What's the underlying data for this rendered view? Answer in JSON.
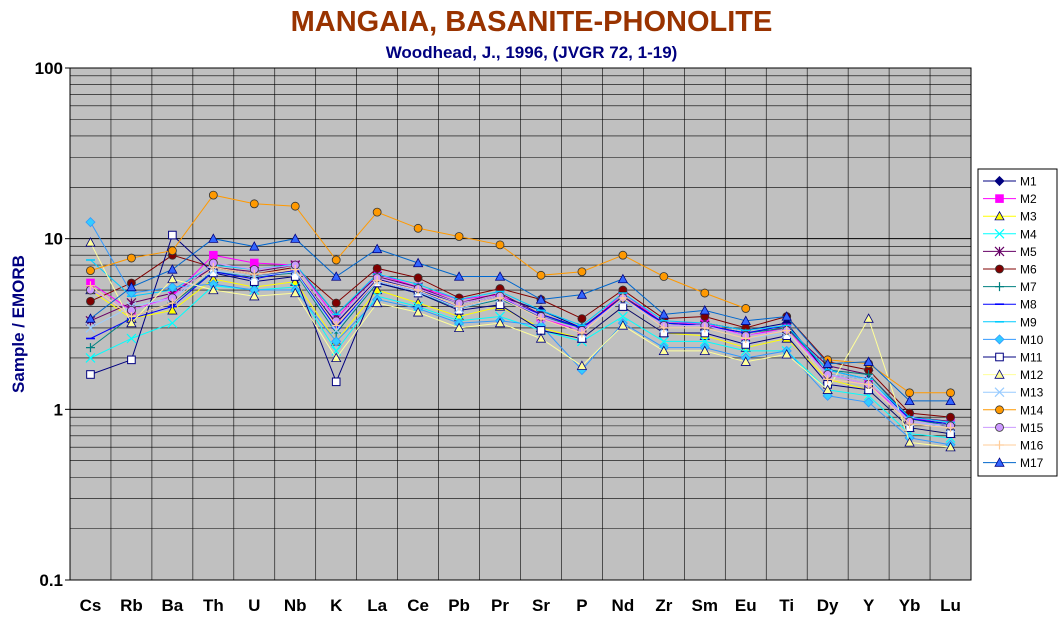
{
  "chart_data": {
    "type": "line",
    "title": "MANGAIA, BASANITE-PHONOLITE",
    "subtitle": "Woodhead, J., 1996, (JVGR 72, 1-19)",
    "xlabel": "",
    "ylabel": "Sample / EMORB",
    "y_scale": "log",
    "ylim": [
      0.1,
      100
    ],
    "y_ticks": [
      "100",
      "10",
      "1",
      "0.1"
    ],
    "grid": true,
    "legend_position": "right",
    "categories": [
      "Cs",
      "Rb",
      "Ba",
      "Th",
      "U",
      "Nb",
      "K",
      "La",
      "Ce",
      "Pb",
      "Pr",
      "Sr",
      "P",
      "Nd",
      "Zr",
      "Sm",
      "Eu",
      "Ti",
      "Dy",
      "Y",
      "Yb",
      "Lu"
    ],
    "series": [
      {
        "name": "M1",
        "color": "#000080",
        "marker": "diamond",
        "fill": "#000080",
        "values": [
          null,
          null,
          4.2,
          6.4,
          6.0,
          6.5,
          3.2,
          5.8,
          5.0,
          4.2,
          4.6,
          3.8,
          3.0,
          4.6,
          3.2,
          3.2,
          2.9,
          3.2,
          1.6,
          1.5,
          0.88,
          0.82
        ]
      },
      {
        "name": "M2",
        "color": "#ff00ff",
        "marker": "square",
        "fill": "#ff00ff",
        "values": [
          5.5,
          3.8,
          4.6,
          8.0,
          7.2,
          7.0,
          3.4,
          6.2,
          5.2,
          4.4,
          4.7,
          3.4,
          2.9,
          4.8,
          3.2,
          3.2,
          2.7,
          3.0,
          1.6,
          1.4,
          0.88,
          0.85
        ]
      },
      {
        "name": "M3",
        "color": "#ffff00",
        "marker": "triangle",
        "fill": "#ffff00",
        "values": [
          5.0,
          3.4,
          3.8,
          5.8,
          5.2,
          5.6,
          2.5,
          5.0,
          4.2,
          3.5,
          4.0,
          3.0,
          2.6,
          4.0,
          2.8,
          2.7,
          2.3,
          2.6,
          1.5,
          1.3,
          0.78,
          0.72
        ]
      },
      {
        "name": "M4",
        "color": "#00ffff",
        "marker": "x",
        "fill": "none",
        "values": [
          2.0,
          2.6,
          3.2,
          5.3,
          5.0,
          5.2,
          2.2,
          4.6,
          4.0,
          3.3,
          3.5,
          2.9,
          2.5,
          3.5,
          2.5,
          2.5,
          2.2,
          2.2,
          1.3,
          1.2,
          0.72,
          0.68
        ]
      },
      {
        "name": "M5",
        "color": "#660066",
        "marker": "star",
        "fill": "none",
        "values": [
          3.3,
          4.2,
          4.8,
          6.8,
          6.4,
          7.0,
          3.6,
          6.0,
          5.2,
          4.2,
          4.8,
          3.6,
          3.0,
          4.6,
          3.2,
          3.1,
          2.8,
          3.0,
          1.8,
          1.6,
          0.9,
          0.85
        ]
      },
      {
        "name": "M6",
        "color": "#800000",
        "marker": "circle",
        "fill": "#800000",
        "values": [
          4.3,
          5.5,
          8.0,
          6.8,
          6.2,
          6.8,
          4.2,
          6.7,
          5.9,
          4.5,
          5.1,
          4.4,
          3.4,
          5.0,
          3.4,
          3.5,
          3.0,
          3.5,
          1.9,
          1.7,
          0.95,
          0.9
        ]
      },
      {
        "name": "M7",
        "color": "#008080",
        "marker": "plus",
        "fill": "none",
        "values": [
          2.3,
          3.5,
          4.2,
          6.4,
          6.0,
          6.3,
          2.8,
          5.5,
          4.8,
          3.9,
          4.4,
          3.5,
          3.0,
          4.4,
          3.2,
          3.1,
          2.8,
          3.0,
          1.7,
          1.6,
          0.88,
          0.8
        ]
      },
      {
        "name": "M8",
        "color": "#0000ff",
        "marker": "dash",
        "fill": "none",
        "values": [
          2.6,
          3.4,
          4.0,
          6.4,
          5.8,
          6.5,
          3.0,
          5.6,
          4.9,
          4.0,
          4.5,
          3.6,
          3.0,
          4.5,
          3.2,
          3.1,
          2.8,
          3.1,
          1.7,
          1.5,
          0.88,
          0.82
        ]
      },
      {
        "name": "M9",
        "color": "#00ccff",
        "marker": "dash",
        "fill": "none",
        "values": [
          7.5,
          4.6,
          5.0,
          7.0,
          6.6,
          7.1,
          3.6,
          6.2,
          5.4,
          4.4,
          4.9,
          3.8,
          3.1,
          4.8,
          3.3,
          3.2,
          2.9,
          3.1,
          1.7,
          1.5,
          0.9,
          0.84
        ]
      },
      {
        "name": "M10",
        "color": "#3399ff",
        "marker": "diamond",
        "fill": "#33ccff",
        "values": [
          12.5,
          4.8,
          5.2,
          5.4,
          5.0,
          5.0,
          2.5,
          4.4,
          3.9,
          3.2,
          3.3,
          3.1,
          1.7,
          3.2,
          2.3,
          2.3,
          2.0,
          2.2,
          1.2,
          1.1,
          0.68,
          0.62
        ]
      },
      {
        "name": "M11",
        "color": "#000080",
        "marker": "square",
        "fill": "#ffffff",
        "values": [
          1.6,
          1.95,
          10.5,
          6.3,
          5.6,
          6.0,
          1.45,
          5.5,
          4.8,
          3.8,
          4.1,
          2.9,
          2.6,
          4.0,
          2.8,
          2.8,
          2.4,
          2.7,
          1.4,
          1.3,
          0.78,
          0.72
        ]
      },
      {
        "name": "M12",
        "color": "#ffff99",
        "marker": "triangle",
        "fill": "#ffff99",
        "values": [
          9.5,
          3.2,
          5.8,
          5.0,
          4.6,
          4.8,
          2.0,
          4.2,
          3.7,
          3.0,
          3.2,
          2.6,
          1.8,
          3.1,
          2.2,
          2.2,
          1.9,
          2.1,
          1.3,
          3.4,
          0.64,
          0.6
        ]
      },
      {
        "name": "M13",
        "color": "#99ccff",
        "marker": "x",
        "fill": "none",
        "values": [
          3.0,
          4.0,
          4.5,
          6.5,
          6.0,
          6.4,
          2.9,
          5.6,
          4.9,
          3.9,
          4.5,
          3.4,
          2.8,
          4.4,
          3.0,
          3.0,
          2.6,
          2.8,
          1.6,
          1.5,
          0.85,
          0.78
        ]
      },
      {
        "name": "M14",
        "color": "#ff9900",
        "marker": "circle",
        "fill": "#ff9900",
        "values": [
          6.5,
          7.7,
          8.5,
          18.0,
          16.0,
          15.5,
          7.5,
          14.3,
          11.5,
          10.3,
          9.2,
          6.1,
          6.4,
          8.0,
          6.0,
          4.8,
          3.9,
          null,
          1.95,
          1.85,
          1.25,
          1.25
        ]
      },
      {
        "name": "M15",
        "color": "#cc99ff",
        "marker": "circle",
        "fill": "#cc99ff",
        "values": [
          5.0,
          3.8,
          4.5,
          7.2,
          6.6,
          7.0,
          3.3,
          5.9,
          5.1,
          4.2,
          4.6,
          3.5,
          2.9,
          4.5,
          3.1,
          3.1,
          2.7,
          2.9,
          1.6,
          1.4,
          0.85,
          0.8
        ]
      },
      {
        "name": "M16",
        "color": "#ffcc99",
        "marker": "plus",
        "fill": "none",
        "values": [
          5.3,
          3.5,
          4.2,
          6.8,
          6.2,
          6.6,
          3.1,
          5.7,
          5.0,
          4.0,
          4.5,
          3.4,
          2.8,
          4.5,
          3.0,
          3.0,
          2.6,
          2.9,
          1.5,
          1.4,
          0.82,
          0.78
        ]
      },
      {
        "name": "M17",
        "color": "#0066cc",
        "marker": "triangle",
        "fill": "#3366ff",
        "values": [
          3.4,
          5.2,
          6.6,
          10.0,
          9.0,
          10.0,
          6.0,
          8.7,
          7.2,
          6.0,
          6.0,
          4.4,
          4.7,
          5.8,
          3.6,
          3.8,
          3.3,
          3.5,
          1.85,
          1.9,
          1.12,
          1.12
        ]
      }
    ]
  }
}
